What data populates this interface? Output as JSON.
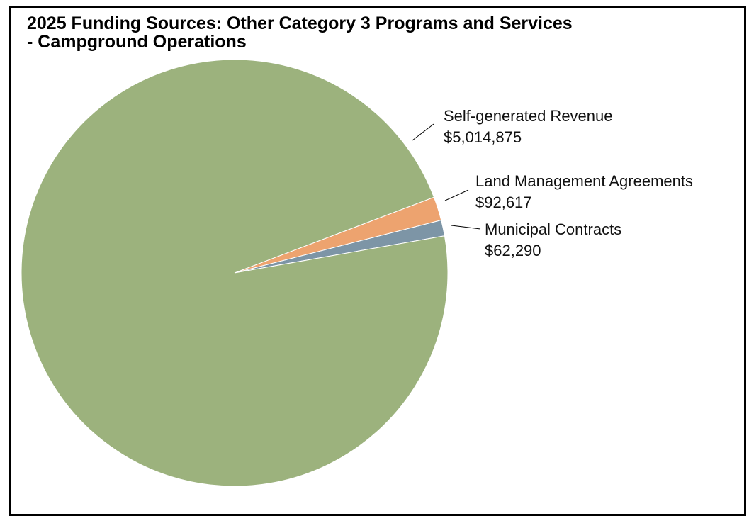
{
  "chart_data": {
    "type": "pie",
    "title": "2025 Funding Sources: Other Category 3 Programs and Services",
    "subtitle": "- Campground Operations",
    "slices": [
      {
        "label": "Self-generated Revenue",
        "value": 5014875,
        "value_text": "$5,014,875",
        "color": "#9cb27d"
      },
      {
        "label": "Land Management Agreements",
        "value": 92617,
        "value_text": "$92,617",
        "color": "#eda36f"
      },
      {
        "label": "Municipal Contracts",
        "value": 62290,
        "value_text": "$62,290",
        "color": "#7d95a6"
      }
    ]
  }
}
